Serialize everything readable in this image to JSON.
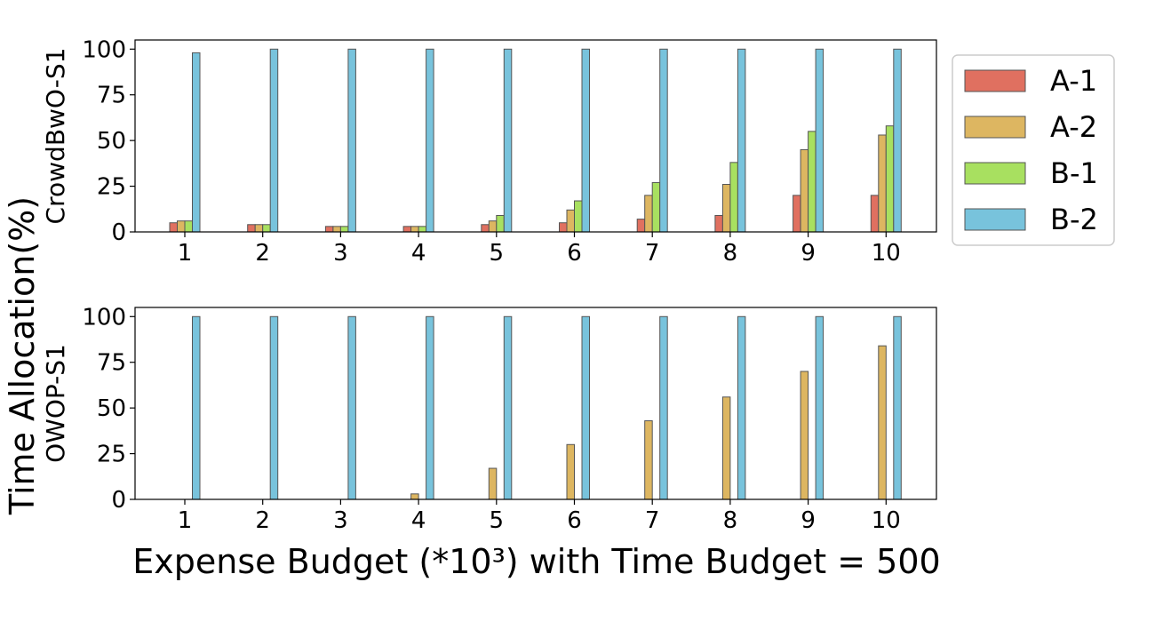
{
  "figure": {
    "ylabel": "Time Allocation(%)",
    "xlabel": "Expense Budget (*10³) with Time Budget = 500"
  },
  "legend": {
    "items": [
      {
        "name": "A-1",
        "color": "#e07060"
      },
      {
        "name": "A-2",
        "color": "#ddb661"
      },
      {
        "name": "B-1",
        "color": "#a8e060"
      },
      {
        "name": "B-2",
        "color": "#78c3dc"
      }
    ],
    "placement": "right of top panel"
  },
  "chart_data": [
    {
      "type": "bar",
      "panel_label": "CrowdBwO-S1",
      "categories": [
        "1",
        "2",
        "3",
        "4",
        "5",
        "6",
        "7",
        "8",
        "9",
        "10"
      ],
      "ylim": [
        0,
        105
      ],
      "yticks": [
        "0",
        "25",
        "50",
        "75",
        "100"
      ],
      "grid": false,
      "series": [
        {
          "name": "A-1",
          "values": [
            5,
            4,
            3,
            3,
            4,
            5,
            7,
            9,
            20,
            20
          ]
        },
        {
          "name": "A-2",
          "values": [
            6,
            4,
            3,
            3,
            6,
            12,
            20,
            26,
            45,
            53
          ]
        },
        {
          "name": "B-1",
          "values": [
            6,
            4,
            3,
            3,
            9,
            17,
            27,
            38,
            55,
            58
          ]
        },
        {
          "name": "B-2",
          "values": [
            98,
            100,
            100,
            100,
            100,
            100,
            100,
            100,
            100,
            100
          ]
        }
      ]
    },
    {
      "type": "bar",
      "panel_label": "OWOP-S1",
      "categories": [
        "1",
        "2",
        "3",
        "4",
        "5",
        "6",
        "7",
        "8",
        "9",
        "10"
      ],
      "ylim": [
        0,
        105
      ],
      "yticks": [
        "0",
        "25",
        "50",
        "75",
        "100"
      ],
      "grid": false,
      "series": [
        {
          "name": "A-1",
          "values": [
            0,
            0,
            0,
            0,
            0,
            0,
            0,
            0,
            0,
            0
          ]
        },
        {
          "name": "A-2",
          "values": [
            0,
            0,
            0,
            3,
            17,
            30,
            43,
            56,
            70,
            84
          ]
        },
        {
          "name": "B-1",
          "values": [
            0,
            0,
            0,
            0,
            0,
            0,
            0,
            0,
            0,
            0
          ]
        },
        {
          "name": "B-2",
          "values": [
            100,
            100,
            100,
            100,
            100,
            100,
            100,
            100,
            100,
            100
          ]
        }
      ]
    }
  ]
}
